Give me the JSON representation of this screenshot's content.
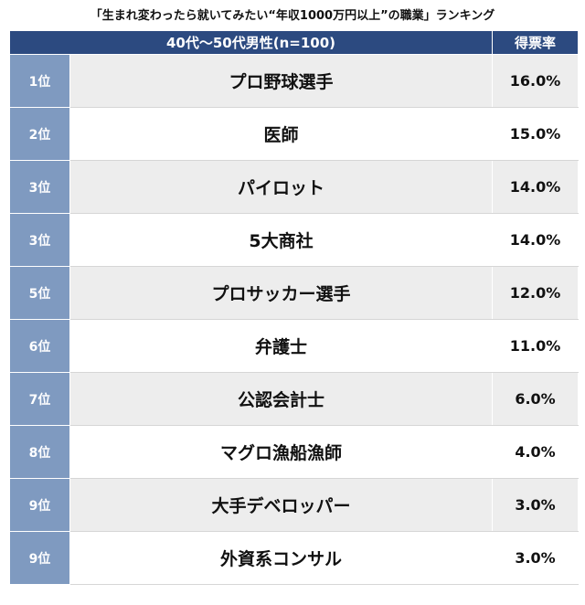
{
  "title": "「生まれ変わったら就いてみたい“年収1000万円以上”の職業」ランキング",
  "chart_data": {
    "type": "table",
    "header": {
      "group": "40代〜50代男性(n=100)",
      "value": "得票率"
    },
    "rows": [
      {
        "rank": "1位",
        "name": "プロ野球選手",
        "pct": "16.0%",
        "value": 16.0
      },
      {
        "rank": "2位",
        "name": "医師",
        "pct": "15.0%",
        "value": 15.0
      },
      {
        "rank": "3位",
        "name": "パイロット",
        "pct": "14.0%",
        "value": 14.0
      },
      {
        "rank": "3位",
        "name": "5大商社",
        "pct": "14.0%",
        "value": 14.0
      },
      {
        "rank": "5位",
        "name": "プロサッカー選手",
        "pct": "12.0%",
        "value": 12.0
      },
      {
        "rank": "6位",
        "name": "弁護士",
        "pct": "11.0%",
        "value": 11.0
      },
      {
        "rank": "7位",
        "name": "公認会計士",
        "pct": "6.0%",
        "value": 6.0
      },
      {
        "rank": "8位",
        "name": "マグロ漁船漁師",
        "pct": "4.0%",
        "value": 4.0
      },
      {
        "rank": "9位",
        "name": "大手デベロッパー",
        "pct": "3.0%",
        "value": 3.0
      },
      {
        "rank": "9位",
        "name": "外資系コンサル",
        "pct": "3.0%",
        "value": 3.0
      }
    ]
  },
  "colors": {
    "header_bg": "#2c4a80",
    "rank_bg": "#7f9ac0",
    "row_alt_bg": "#ededed"
  }
}
